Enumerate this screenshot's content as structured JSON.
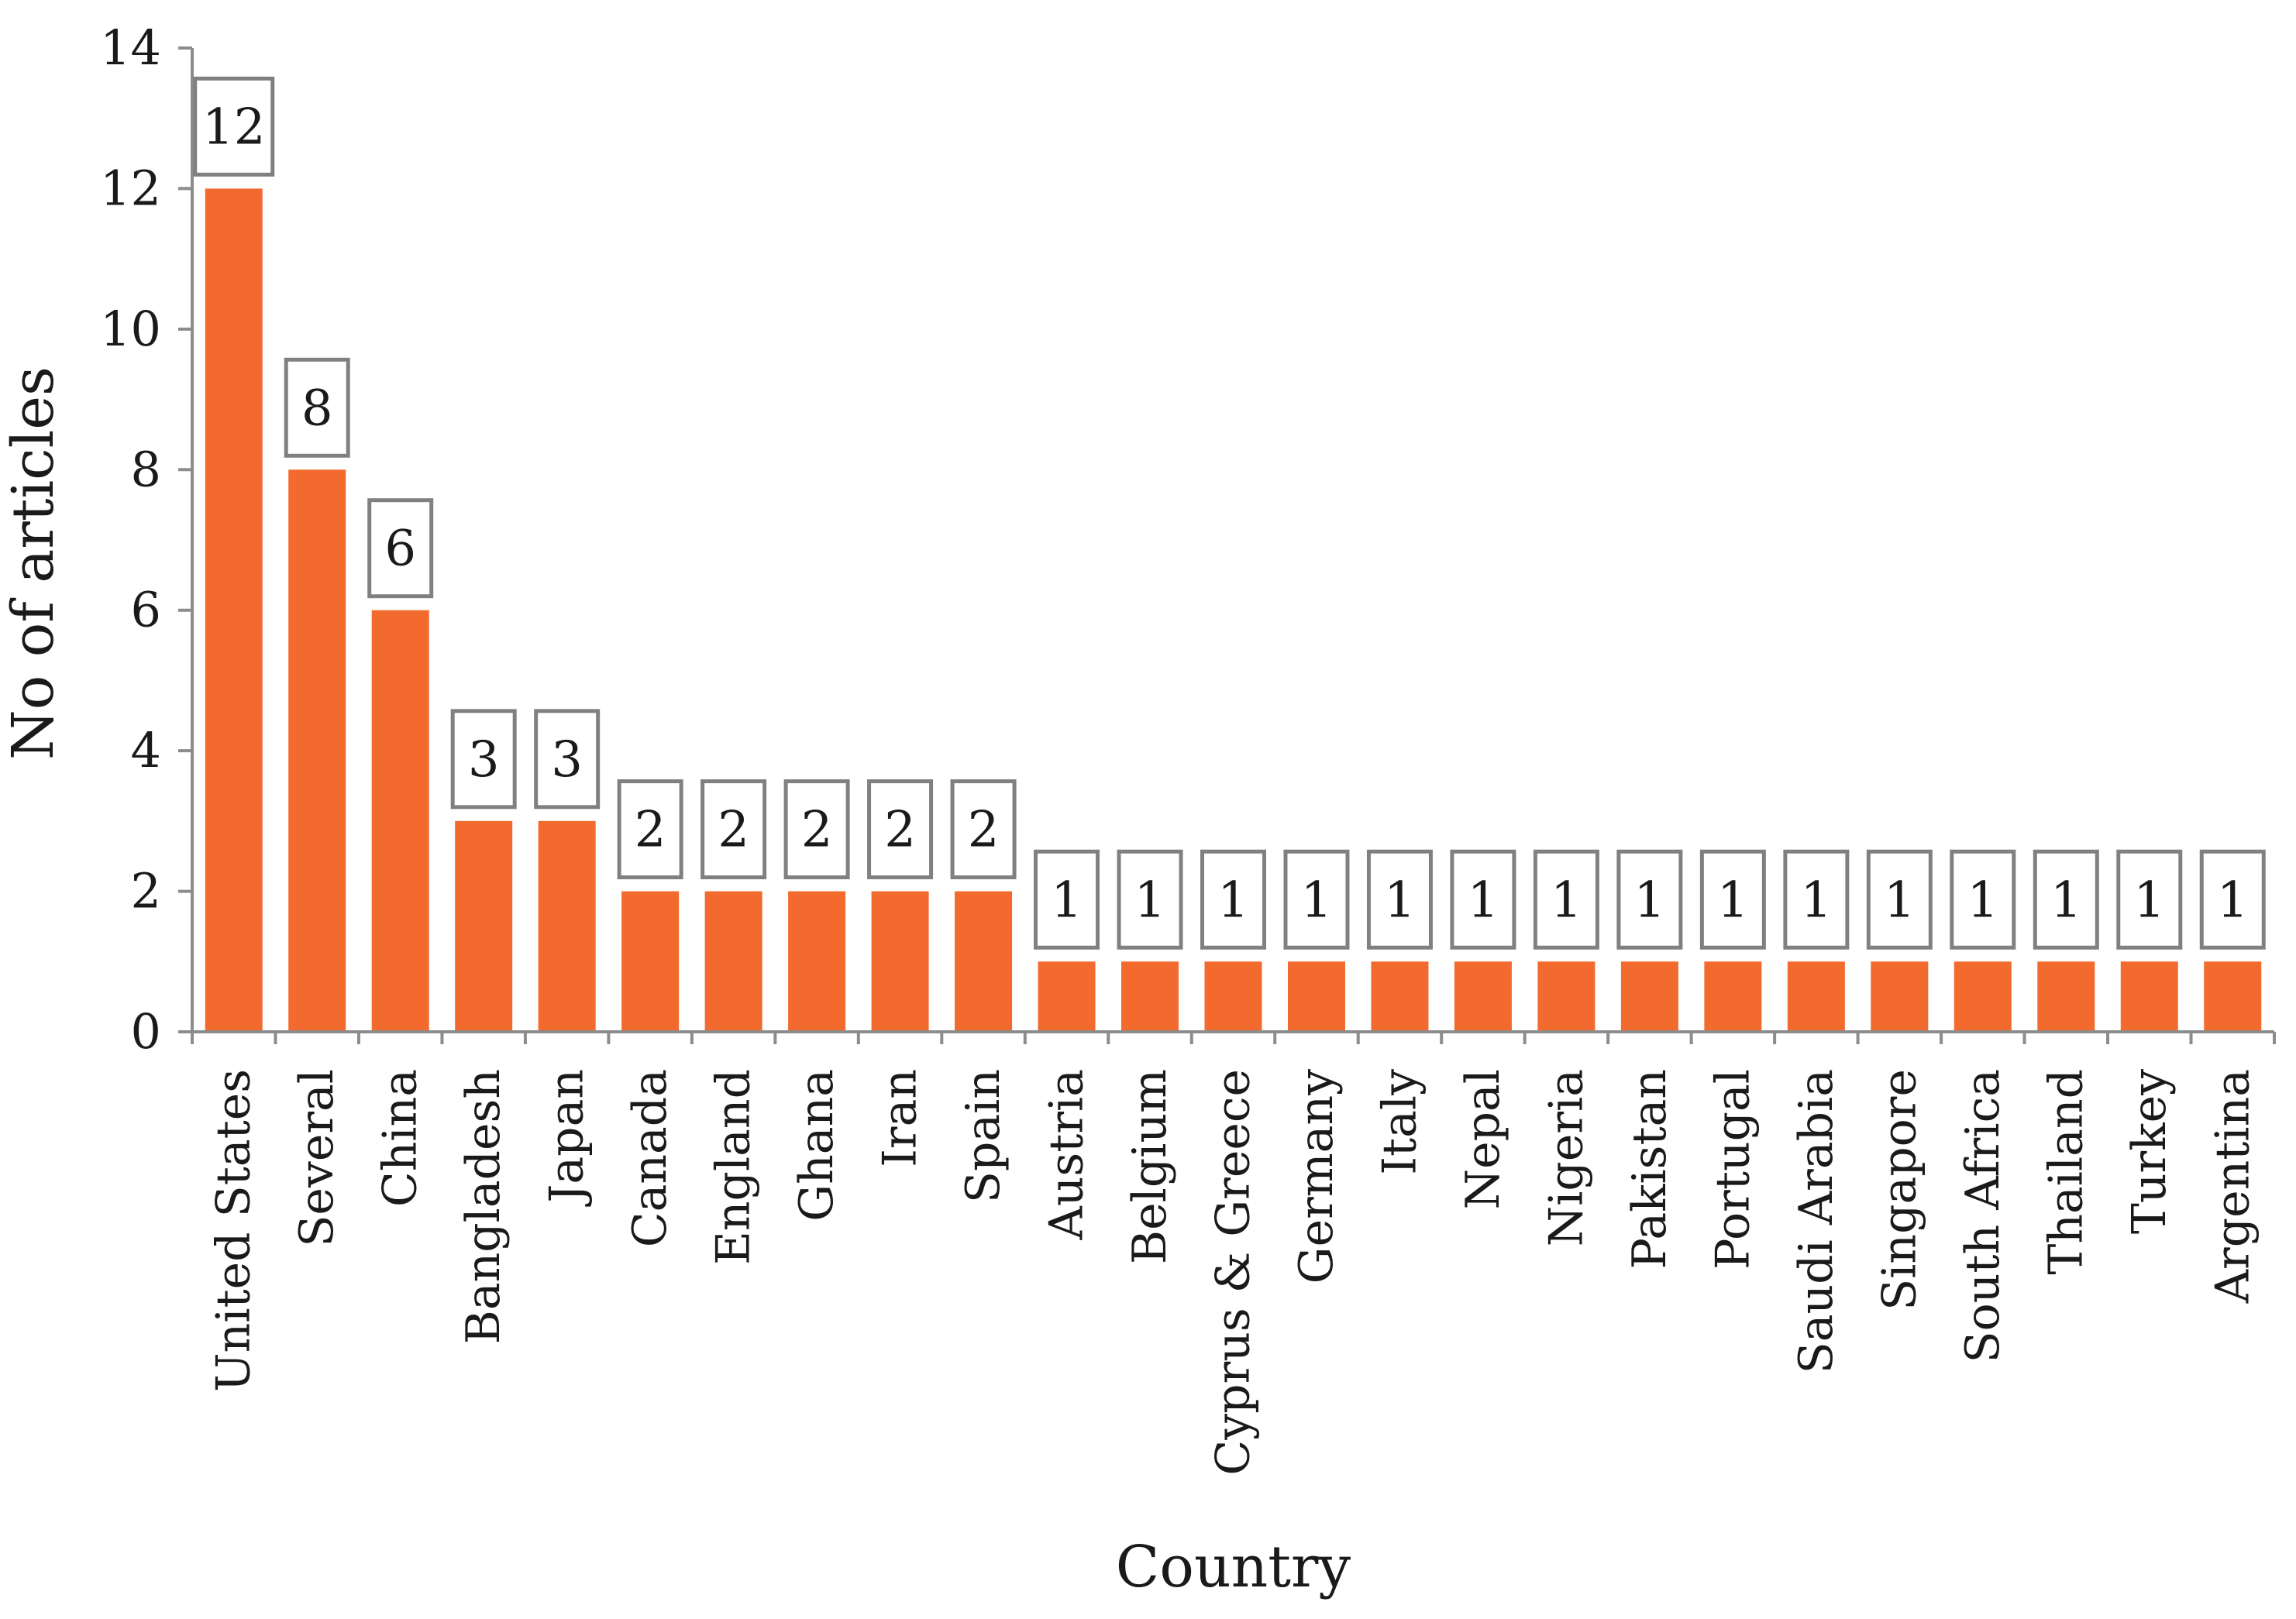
{
  "chart_data": {
    "type": "bar",
    "title": "",
    "xlabel": "Country",
    "ylabel": "No of articles",
    "ylim": [
      0,
      14
    ],
    "yticks": [
      0,
      2,
      4,
      6,
      8,
      10,
      12,
      14
    ],
    "grid": false,
    "legend": "none",
    "bar_color": "#F26A2E",
    "categories": [
      "United States",
      "Several",
      "China",
      "Bangladesh",
      "Japan",
      "Canada",
      "England",
      "Ghana",
      "Iran",
      "Spain",
      "Austria",
      "Belgium",
      "Cyprus & Greece",
      "Germany",
      "Italy",
      "Nepal",
      "Nigeria",
      "Pakistan",
      "Portugal",
      "Saudi Arabia",
      "Singapore",
      "South Africa",
      "Thailand",
      "Turkey",
      "Argentina"
    ],
    "values": [
      12,
      8,
      6,
      3,
      3,
      2,
      2,
      2,
      2,
      2,
      1,
      1,
      1,
      1,
      1,
      1,
      1,
      1,
      1,
      1,
      1,
      1,
      1,
      1,
      1
    ],
    "data_labels": [
      "12",
      "8",
      "6",
      "3",
      "3",
      "2",
      "2",
      "2",
      "2",
      "2",
      "1",
      "1",
      "1",
      "1",
      "1",
      "1",
      "1",
      "1",
      "1",
      "1",
      "1",
      "1",
      "1",
      "1",
      "1"
    ]
  }
}
